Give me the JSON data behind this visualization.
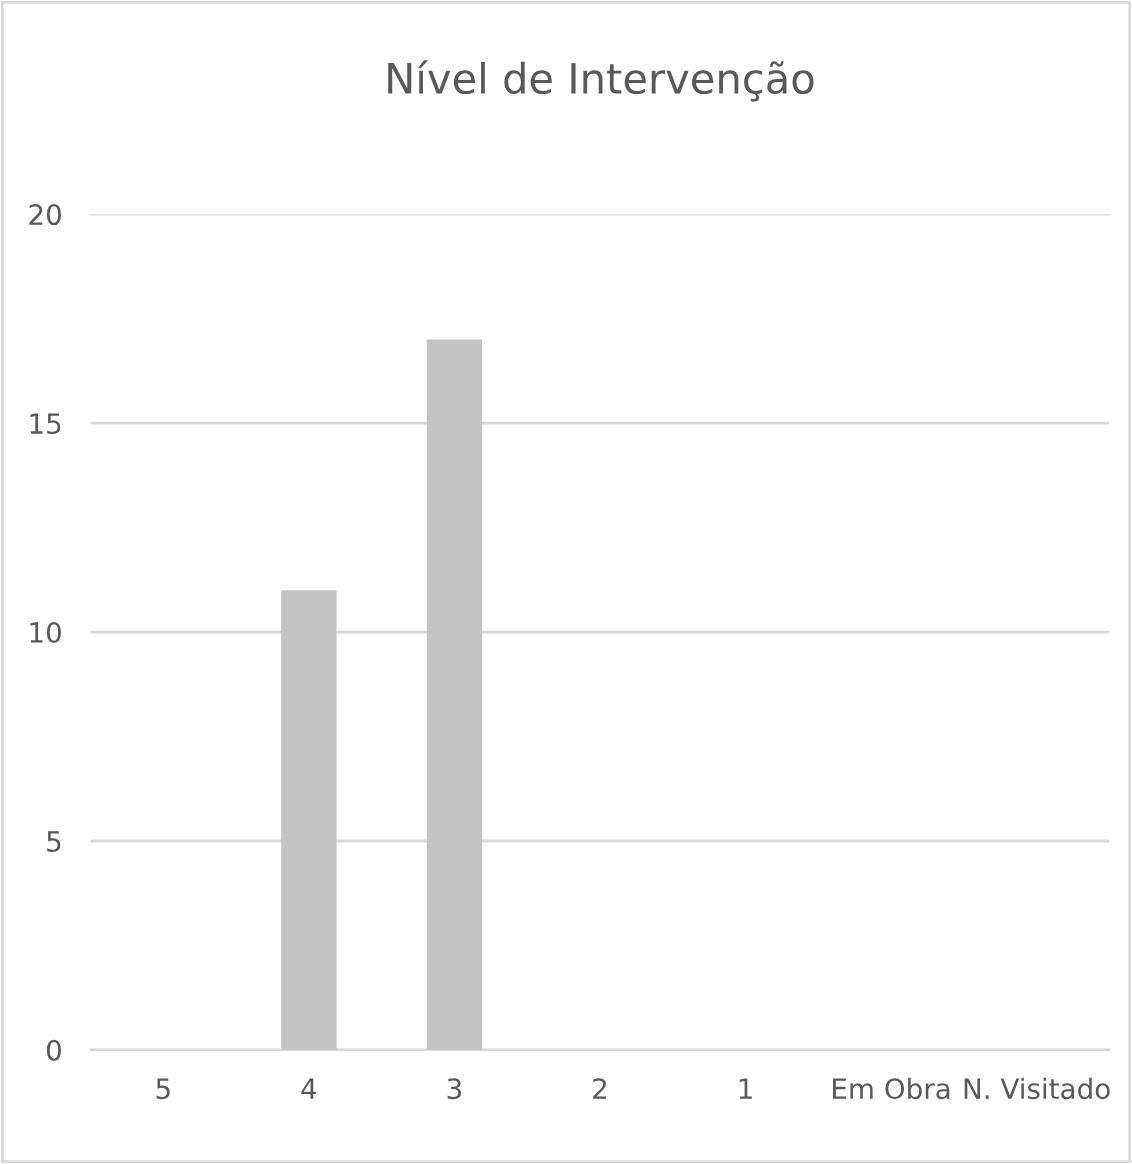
{
  "chart_data": {
    "type": "bar",
    "title": "Nível de Intervenção",
    "categories": [
      "5",
      "4",
      "3",
      "2",
      "1",
      "Em Obra",
      "N. Visitado"
    ],
    "values": [
      0,
      11,
      17,
      0,
      0,
      0,
      0
    ],
    "color": "#c4c4c4",
    "ylim": [
      0,
      20
    ],
    "yticks": [
      0,
      5,
      10,
      15,
      20
    ],
    "grid": "y",
    "legend": false
  }
}
